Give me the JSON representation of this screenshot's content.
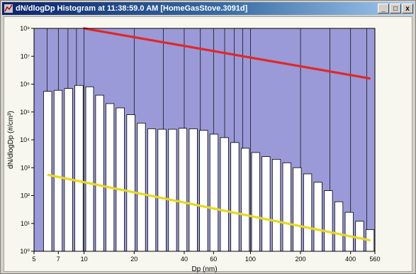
{
  "window": {
    "title": "dN/dlogDp Histogram at 11:38:59.0 AM  [HomeGasStove.3091d]",
    "buttons": {
      "minimize": "_",
      "maximize": "□",
      "close": "x"
    }
  },
  "colors": {
    "plot_bg": "#9a9ad8",
    "bar_fill": "#ffffff",
    "red_line": "#e02828",
    "yellow_line": "#e6d820",
    "titlebar": "#0a246a"
  },
  "chart_data": {
    "type": "bar",
    "xlabel": "Dp (nm)",
    "ylabel": "dN/dlogDp (#/cm³)",
    "x_scale": "log",
    "y_scale": "log",
    "xlim": [
      5,
      560
    ],
    "ylim": [
      1,
      100000000
    ],
    "grid": "vertical",
    "x_ticks": [
      {
        "v": 5,
        "label": "5"
      },
      {
        "v": 7,
        "label": "7"
      },
      {
        "v": 10,
        "label": "10"
      },
      {
        "v": 20,
        "label": "20"
      },
      {
        "v": 40,
        "label": "40"
      },
      {
        "v": 60,
        "label": "60"
      },
      {
        "v": 100,
        "label": "100"
      },
      {
        "v": 200,
        "label": "200"
      },
      {
        "v": 400,
        "label": "400"
      },
      {
        "v": 560,
        "label": "560"
      }
    ],
    "y_ticks": [
      {
        "v": 1,
        "label": "10⁰"
      },
      {
        "v": 10,
        "label": "10¹"
      },
      {
        "v": 100,
        "label": "10²"
      },
      {
        "v": 1000,
        "label": "10³"
      },
      {
        "v": 10000,
        "label": "10⁴"
      },
      {
        "v": 100000,
        "label": "10⁵"
      },
      {
        "v": 1000000,
        "label": "10⁶"
      },
      {
        "v": 10000000,
        "label": "10⁷"
      },
      {
        "v": 100000000,
        "label": "10⁸"
      }
    ],
    "bars": {
      "diameters": [
        6.04,
        6.98,
        8.06,
        9.31,
        10.8,
        12.4,
        14.3,
        16.5,
        19.1,
        22.1,
        25.5,
        29.4,
        34.0,
        39.2,
        45.3,
        52.3,
        60.4,
        69.8,
        80.6,
        93.1,
        107.5,
        124.1,
        143.3,
        165.5,
        191.1,
        220.7,
        254.8,
        294.3,
        339.8,
        392.4,
        453.2,
        523.3
      ],
      "values": [
        550000,
        600000,
        700000,
        900000,
        800000,
        400000,
        200000,
        140000,
        80000,
        40000,
        25000,
        24000,
        24000,
        26000,
        25000,
        22000,
        16000,
        12000,
        8000,
        5000,
        3500,
        2500,
        2000,
        1500,
        1000,
        600,
        300,
        150,
        60,
        25,
        12,
        6
      ]
    },
    "lines": [
      {
        "color": "red",
        "x": [
          10,
          520
        ],
        "y": [
          100000000,
          1600000
        ]
      },
      {
        "color": "yellow",
        "x": [
          6.1,
          520
        ],
        "y": [
          550,
          2.5
        ]
      }
    ]
  }
}
